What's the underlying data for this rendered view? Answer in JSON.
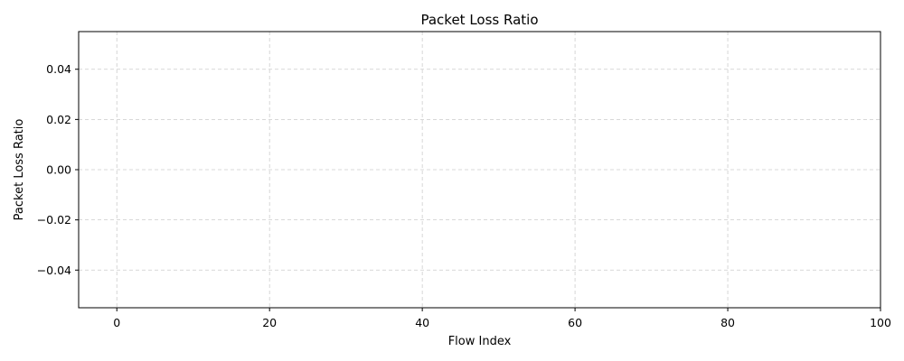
{
  "chart_data": {
    "type": "line",
    "title": "Packet Loss Ratio",
    "xlabel": "Flow Index",
    "ylabel": "Packet Loss Ratio",
    "xlim": [
      -5,
      100
    ],
    "ylim": [
      -0.055,
      0.055
    ],
    "xticks": [
      0,
      20,
      40,
      60,
      80,
      100
    ],
    "yticks": [
      0.04,
      0.02,
      0.0,
      -0.02,
      -0.04
    ],
    "xtick_labels": [
      "0",
      "20",
      "40",
      "60",
      "80",
      "100"
    ],
    "ytick_labels": [
      "0.04",
      "0.02",
      "0.00",
      "−0.02",
      "−0.04"
    ],
    "grid": true,
    "grid_style": "dashed",
    "grid_color": "#cccccc",
    "series": []
  }
}
